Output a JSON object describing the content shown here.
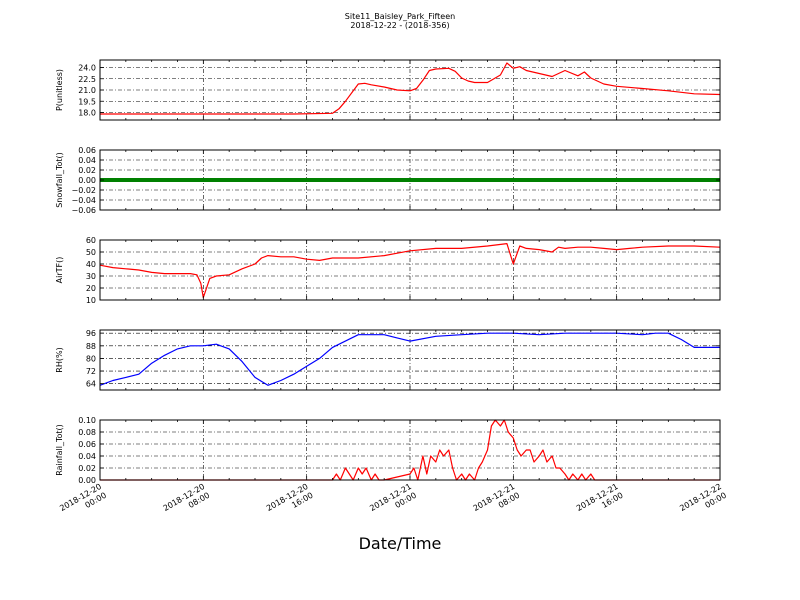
{
  "figure": {
    "title": "Site11_Baisley_Park_Fifteen",
    "subtitle": "2018-12-22 - (2018-356)",
    "xlabel": "Date/Time",
    "x_tick_labels": [
      [
        "2018-12-20",
        "00:00"
      ],
      [
        "2018-12-20",
        "08:00"
      ],
      [
        "2018-12-20",
        "16:00"
      ],
      [
        "2018-12-21",
        "00:00"
      ],
      [
        "2018-12-21",
        "08:00"
      ],
      [
        "2018-12-21",
        "16:00"
      ],
      [
        "2018-12-22",
        "00:00"
      ]
    ],
    "xlim_hours": [
      0,
      48
    ]
  },
  "chart_data": [
    {
      "type": "line",
      "ylabel": "P(unitless)",
      "color": "#ff0000",
      "ylim": [
        17.0,
        25.0
      ],
      "yticks": [
        18.0,
        19.5,
        21.0,
        22.5,
        24.0
      ],
      "ytick_labels": [
        "18.0",
        "19.5",
        "21.0",
        "22.5",
        "24.0"
      ],
      "grid": true,
      "x": [
        0,
        3,
        6,
        9,
        12,
        15,
        18,
        18.5,
        19,
        20,
        20.5,
        21,
        22,
        23,
        24,
        24.5,
        25,
        25.5,
        26,
        27,
        27.5,
        28,
        28.5,
        29,
        30,
        31,
        31.5,
        32,
        32.5,
        33,
        34,
        35,
        36,
        37,
        37.5,
        38,
        39,
        40,
        42,
        44,
        46,
        48
      ],
      "y": [
        17.8,
        17.8,
        17.8,
        17.8,
        17.8,
        17.8,
        17.9,
        18.5,
        19.5,
        21.8,
        21.9,
        21.7,
        21.4,
        21.0,
        20.9,
        21.2,
        22.3,
        23.6,
        23.8,
        23.9,
        23.5,
        22.6,
        22.2,
        22.0,
        22.0,
        23.0,
        24.6,
        23.9,
        24.1,
        23.6,
        23.2,
        22.8,
        23.6,
        22.9,
        23.4,
        22.6,
        21.8,
        21.5,
        21.2,
        20.9,
        20.5,
        20.4
      ]
    },
    {
      "type": "line",
      "ylabel": "Snowfall_Tot()",
      "color": "#008000",
      "ylim": [
        -0.06,
        0.06
      ],
      "yticks": [
        -0.06,
        -0.04,
        -0.02,
        0.0,
        0.02,
        0.04,
        0.06
      ],
      "ytick_labels": [
        "−0.06",
        "−0.04",
        "−0.02",
        "0.00",
        "0.02",
        "0.04",
        "0.06"
      ],
      "grid": true,
      "x": [
        0,
        48
      ],
      "y": [
        0.0,
        0.0
      ]
    },
    {
      "type": "line",
      "ylabel": "AirTF()",
      "color": "#ff0000",
      "ylim": [
        10,
        60
      ],
      "yticks": [
        10,
        20,
        30,
        40,
        50,
        60
      ],
      "ytick_labels": [
        "10",
        "20",
        "30",
        "40",
        "50",
        "60"
      ],
      "grid": true,
      "x": [
        0,
        1,
        2,
        3,
        4,
        5,
        6,
        7,
        7.5,
        7.8,
        8,
        8.5,
        9,
        10,
        11,
        12,
        12.5,
        13,
        14,
        15,
        16,
        17,
        18,
        19,
        20,
        22,
        24,
        26,
        28,
        30,
        31.5,
        32,
        32.5,
        33,
        34,
        35,
        35.5,
        36,
        37,
        38,
        39,
        40,
        41,
        42,
        44,
        46,
        48
      ],
      "y": [
        39,
        37,
        36,
        35,
        33,
        32,
        32,
        32,
        31,
        24,
        12,
        28,
        30,
        31,
        36,
        40,
        45,
        47,
        46,
        46,
        44,
        43,
        45,
        45,
        45,
        47,
        51,
        53,
        53,
        55,
        57,
        40,
        55,
        53,
        52,
        50,
        54,
        53,
        54,
        54,
        53,
        52,
        53,
        54,
        55,
        55,
        54
      ]
    },
    {
      "type": "line",
      "ylabel": "RH(%)",
      "color": "#0000ff",
      "ylim": [
        60,
        98
      ],
      "yticks": [
        64,
        72,
        80,
        88,
        96
      ],
      "ytick_labels": [
        "64",
        "72",
        "80",
        "88",
        "96"
      ],
      "grid": true,
      "x": [
        0,
        1,
        2,
        3,
        4,
        5,
        6,
        7,
        8,
        9,
        10,
        11,
        12,
        13,
        14,
        15,
        16,
        17,
        18,
        19,
        20,
        21,
        22,
        23,
        24,
        26,
        28,
        30,
        32,
        34,
        36,
        38,
        40,
        42,
        43,
        44,
        45,
        46,
        47,
        48
      ],
      "y": [
        63,
        66,
        68,
        70,
        77,
        82,
        86,
        88,
        88,
        89,
        86,
        78,
        68,
        63,
        66,
        70,
        75,
        80,
        87,
        91,
        95,
        95,
        95,
        93,
        91,
        94,
        95,
        96,
        96,
        95,
        96,
        96,
        96,
        95,
        96,
        96,
        92,
        87,
        87,
        87
      ]
    },
    {
      "type": "line",
      "ylabel": "Rainfall_Tot()",
      "color": "#ff0000",
      "ylim": [
        0.0,
        0.1
      ],
      "yticks": [
        0.0,
        0.02,
        0.04,
        0.06,
        0.08,
        0.1
      ],
      "ytick_labels": [
        "0.00",
        "0.02",
        "0.04",
        "0.06",
        "0.08",
        "0.10"
      ],
      "grid": true,
      "x": [
        0,
        18,
        18.3,
        18.6,
        19,
        19.3,
        19.6,
        20,
        20.3,
        20.6,
        21,
        21.3,
        21.6,
        22,
        24,
        24.3,
        24.6,
        25,
        25.3,
        25.6,
        26,
        26.3,
        26.6,
        27,
        27.3,
        27.6,
        28,
        28.3,
        28.6,
        29,
        29.3,
        29.6,
        30,
        30.3,
        30.6,
        31,
        31.3,
        31.6,
        32,
        32.3,
        32.6,
        33,
        33.3,
        33.6,
        34,
        34.3,
        34.6,
        35,
        35.3,
        35.6,
        36,
        36.3,
        36.6,
        37,
        37.3,
        37.6,
        38,
        38.3,
        38.6,
        39,
        39.3,
        39.6,
        40,
        48
      ],
      "y": [
        0.0,
        0.0,
        0.01,
        0.0,
        0.02,
        0.01,
        0.0,
        0.02,
        0.01,
        0.02,
        0.0,
        0.01,
        0.0,
        0.0,
        0.01,
        0.02,
        0.0,
        0.04,
        0.01,
        0.04,
        0.03,
        0.05,
        0.04,
        0.05,
        0.02,
        0.0,
        0.01,
        0.0,
        0.01,
        0.0,
        0.02,
        0.03,
        0.05,
        0.09,
        0.1,
        0.09,
        0.1,
        0.08,
        0.07,
        0.05,
        0.04,
        0.05,
        0.05,
        0.03,
        0.04,
        0.05,
        0.03,
        0.04,
        0.02,
        0.02,
        0.01,
        0.0,
        0.01,
        0.0,
        0.01,
        0.0,
        0.01,
        0.0,
        0.0,
        0.0,
        0.0,
        0.0,
        0.0,
        0.0
      ]
    }
  ]
}
